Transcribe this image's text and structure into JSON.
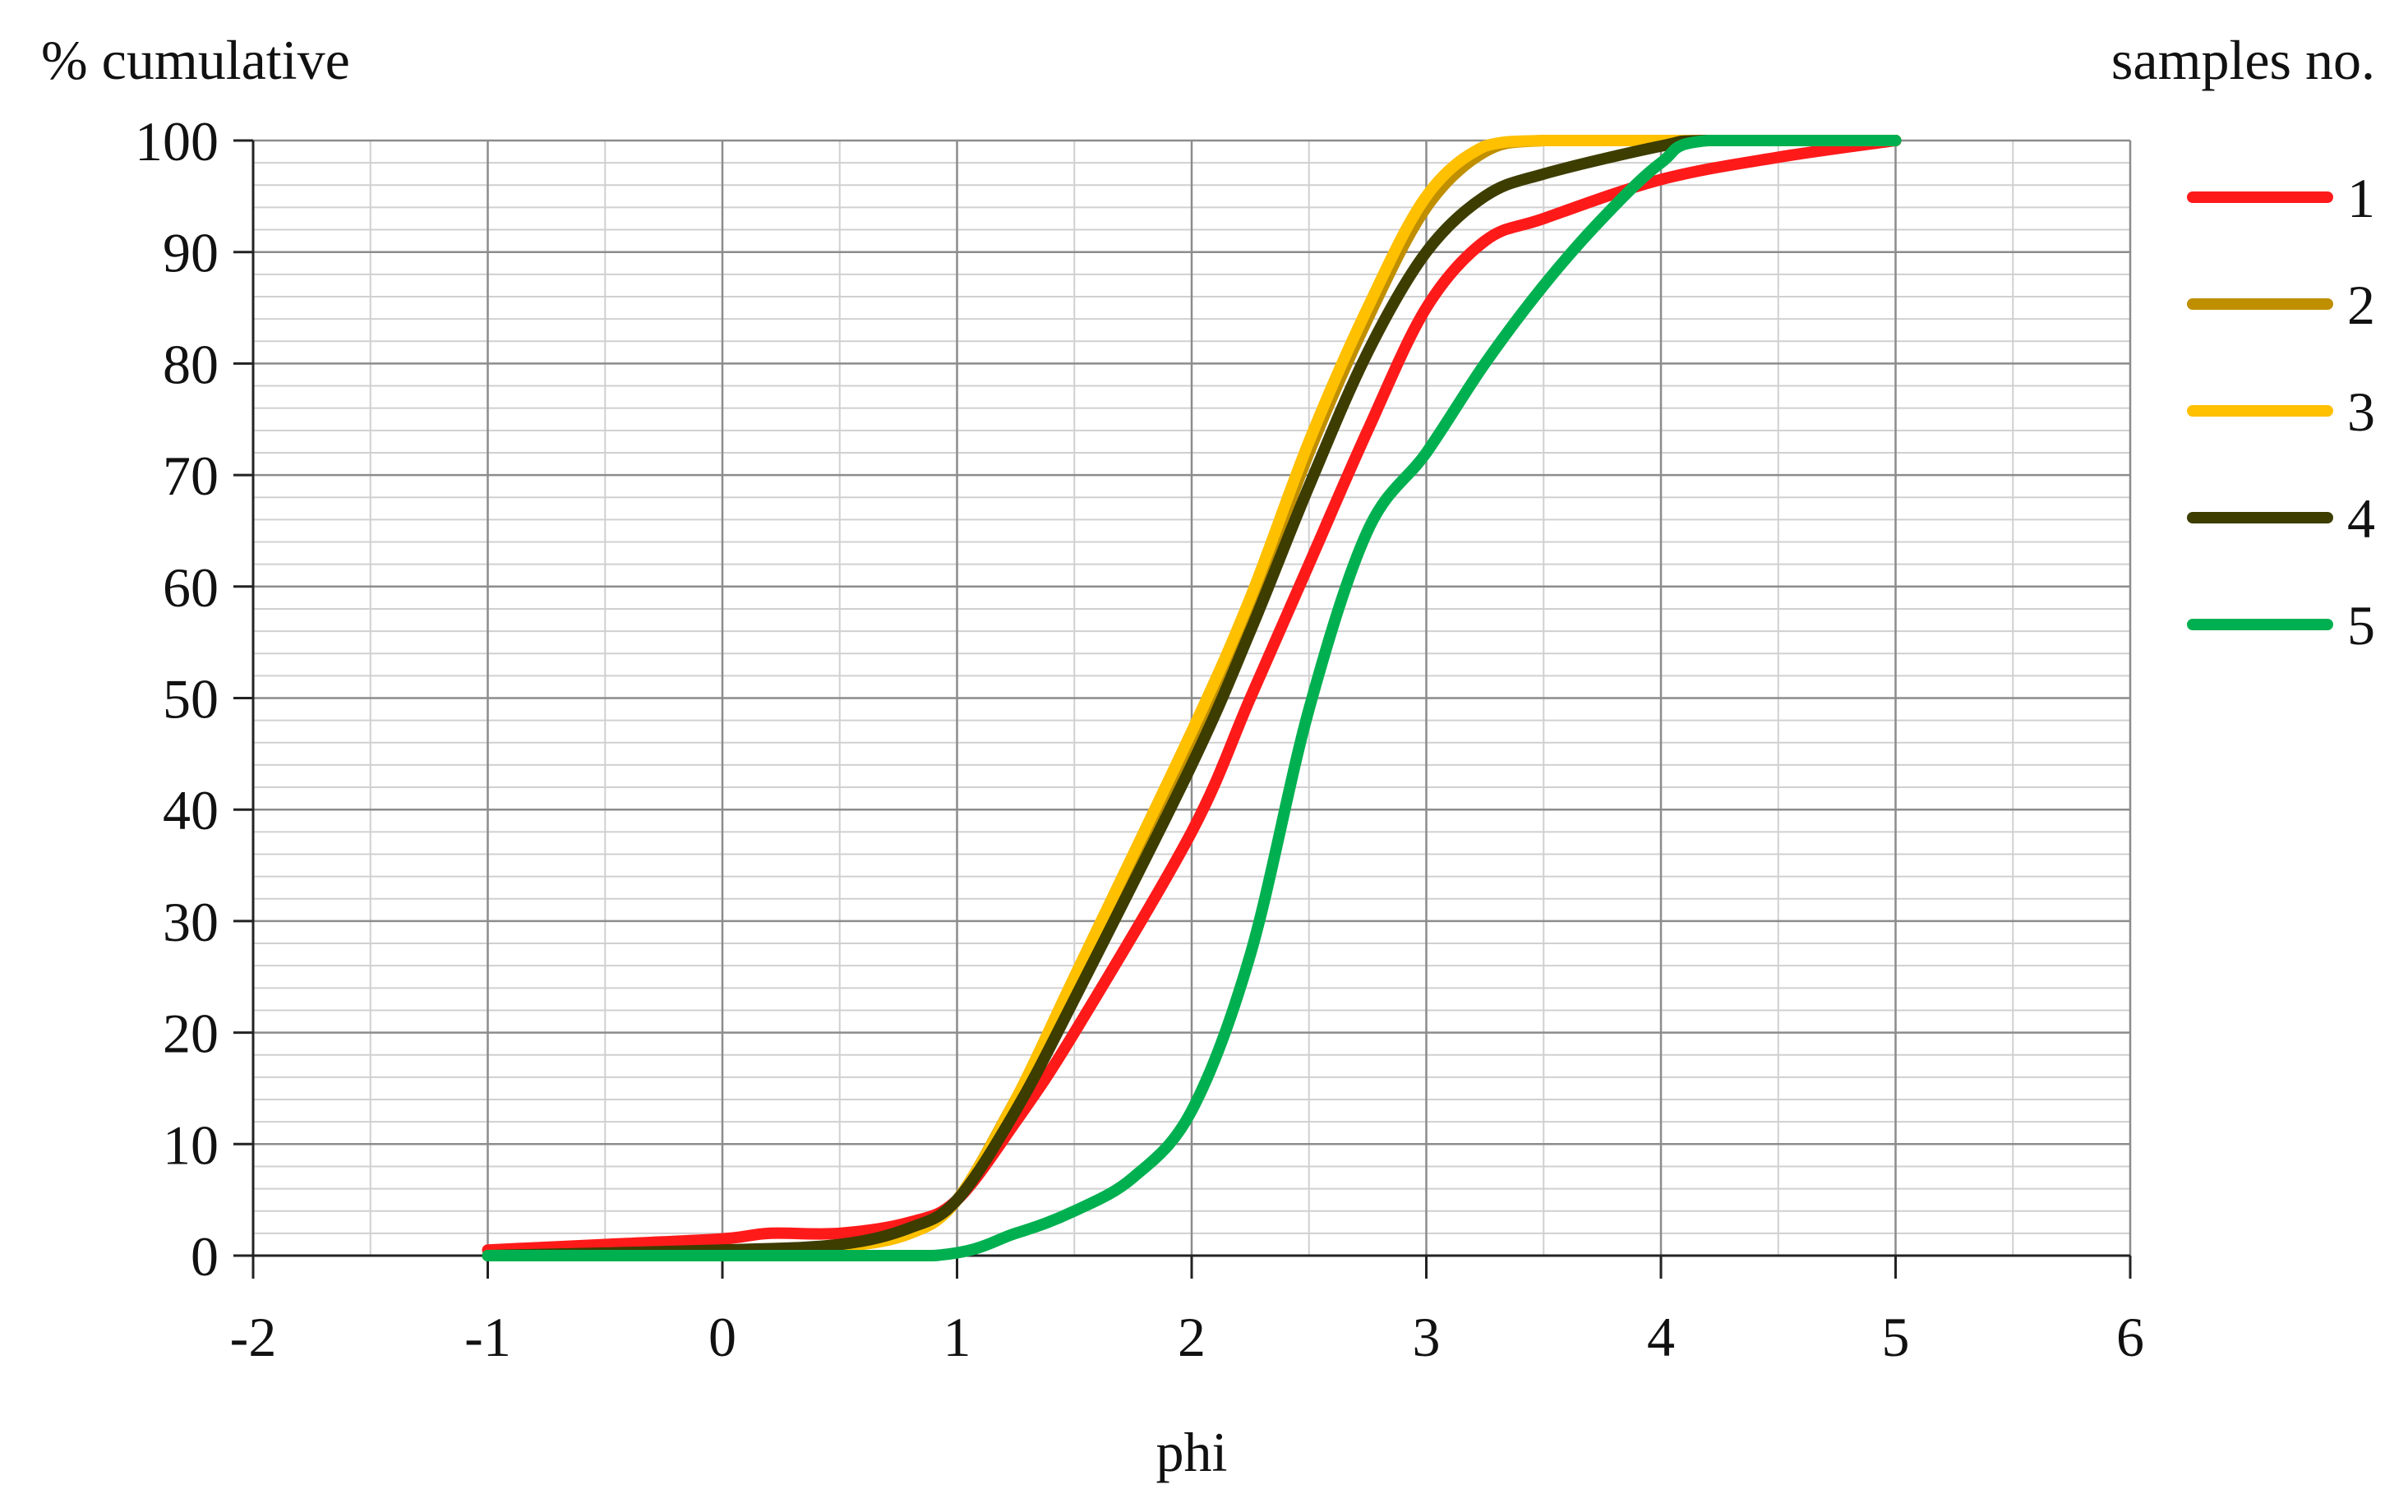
{
  "chart_data": {
    "type": "line",
    "title": "",
    "ylabel": "% cumulative",
    "xlabel": "phi",
    "legend_title": "samples no.",
    "legend_position": "right",
    "xlim": [
      -2,
      6
    ],
    "ylim": [
      0,
      100
    ],
    "x_ticks": [
      "-2",
      "-1",
      "0",
      "1",
      "2",
      "3",
      "4",
      "5",
      "6"
    ],
    "y_ticks": [
      "0",
      "10",
      "20",
      "30",
      "40",
      "50",
      "60",
      "70",
      "80",
      "90",
      "100"
    ],
    "grid": true,
    "series": [
      {
        "name": "1",
        "color": "#ff1a1a",
        "points": [
          [
            -1,
            0.5
          ],
          [
            -0.5,
            1.0
          ],
          [
            0,
            1.5
          ],
          [
            0.2,
            2.0
          ],
          [
            0.5,
            2.0
          ],
          [
            0.8,
            3.0
          ],
          [
            1,
            5.0
          ],
          [
            1.25,
            12
          ],
          [
            1.5,
            20
          ],
          [
            2,
            38
          ],
          [
            2.25,
            50
          ],
          [
            2.5,
            62
          ],
          [
            2.75,
            74
          ],
          [
            3,
            85
          ],
          [
            3.25,
            91
          ],
          [
            3.5,
            93
          ],
          [
            4,
            96.5
          ],
          [
            4.5,
            98.5
          ],
          [
            5,
            100
          ]
        ]
      },
      {
        "name": "2",
        "color": "#bf8f00",
        "points": [
          [
            -1,
            0
          ],
          [
            0,
            0.3
          ],
          [
            0.5,
            0.8
          ],
          [
            0.8,
            2.0
          ],
          [
            1,
            5.0
          ],
          [
            1.25,
            14
          ],
          [
            1.5,
            24
          ],
          [
            2,
            46
          ],
          [
            2.25,
            58
          ],
          [
            2.5,
            72
          ],
          [
            2.75,
            84
          ],
          [
            3,
            94
          ],
          [
            3.25,
            99
          ],
          [
            3.5,
            100
          ],
          [
            4,
            100
          ],
          [
            5,
            100
          ]
        ]
      },
      {
        "name": "3",
        "color": "#ffc000",
        "points": [
          [
            -1,
            0
          ],
          [
            0,
            0.3
          ],
          [
            0.5,
            0.8
          ],
          [
            0.8,
            2.0
          ],
          [
            1,
            5.0
          ],
          [
            1.25,
            14
          ],
          [
            1.5,
            25
          ],
          [
            2,
            47
          ],
          [
            2.25,
            59
          ],
          [
            2.5,
            73
          ],
          [
            2.75,
            85
          ],
          [
            3,
            95
          ],
          [
            3.25,
            99.5
          ],
          [
            3.5,
            100
          ],
          [
            4,
            100
          ],
          [
            5,
            100
          ]
        ]
      },
      {
        "name": "4",
        "color": "#3d3d00",
        "points": [
          [
            -1,
            0
          ],
          [
            0,
            0.5
          ],
          [
            0.5,
            1.0
          ],
          [
            0.8,
            2.5
          ],
          [
            1,
            5.0
          ],
          [
            1.25,
            13
          ],
          [
            1.5,
            23
          ],
          [
            2,
            44
          ],
          [
            2.25,
            56
          ],
          [
            2.5,
            69
          ],
          [
            2.75,
            81
          ],
          [
            3,
            90
          ],
          [
            3.25,
            95
          ],
          [
            3.5,
            97
          ],
          [
            4,
            99.5
          ],
          [
            4.2,
            100
          ],
          [
            5,
            100
          ]
        ]
      },
      {
        "name": "5",
        "color": "#00b050",
        "points": [
          [
            -1,
            0
          ],
          [
            0,
            0
          ],
          [
            0.9,
            0
          ],
          [
            1.25,
            2.0
          ],
          [
            1.5,
            4.0
          ],
          [
            1.75,
            7.0
          ],
          [
            2,
            13
          ],
          [
            2.25,
            27
          ],
          [
            2.5,
            49
          ],
          [
            2.75,
            65
          ],
          [
            3,
            72
          ],
          [
            3.25,
            80
          ],
          [
            3.5,
            87
          ],
          [
            3.75,
            93
          ],
          [
            4,
            98
          ],
          [
            4.2,
            100
          ],
          [
            5,
            100
          ]
        ]
      }
    ]
  }
}
